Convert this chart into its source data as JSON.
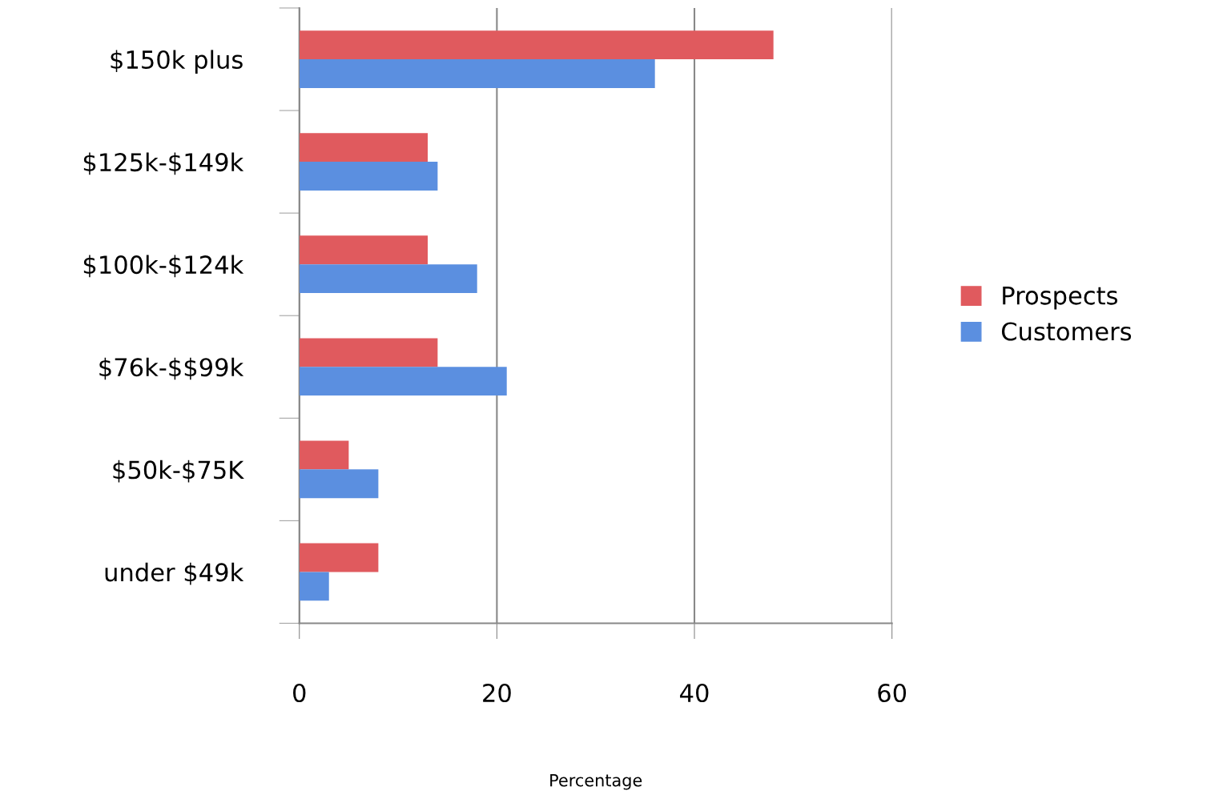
{
  "chart_data": {
    "type": "bar",
    "orientation": "horizontal",
    "xlabel": "Percentage",
    "categories": [
      "$150k plus",
      "$125k-$149k",
      "$100k-$124k",
      "$76k-$$99k",
      "$50k-$75K",
      "under $49k"
    ],
    "series": [
      {
        "name": "Prospects",
        "color": "#e05a5e",
        "values": [
          48,
          13,
          13,
          14,
          5,
          8
        ]
      },
      {
        "name": "Customers",
        "color": "#5b8fe0",
        "values": [
          36,
          14,
          18,
          21,
          8,
          3
        ]
      }
    ],
    "xlim": [
      0,
      60
    ],
    "xticks": [
      0,
      20,
      40,
      60
    ],
    "grid": "x",
    "legend": "right"
  }
}
